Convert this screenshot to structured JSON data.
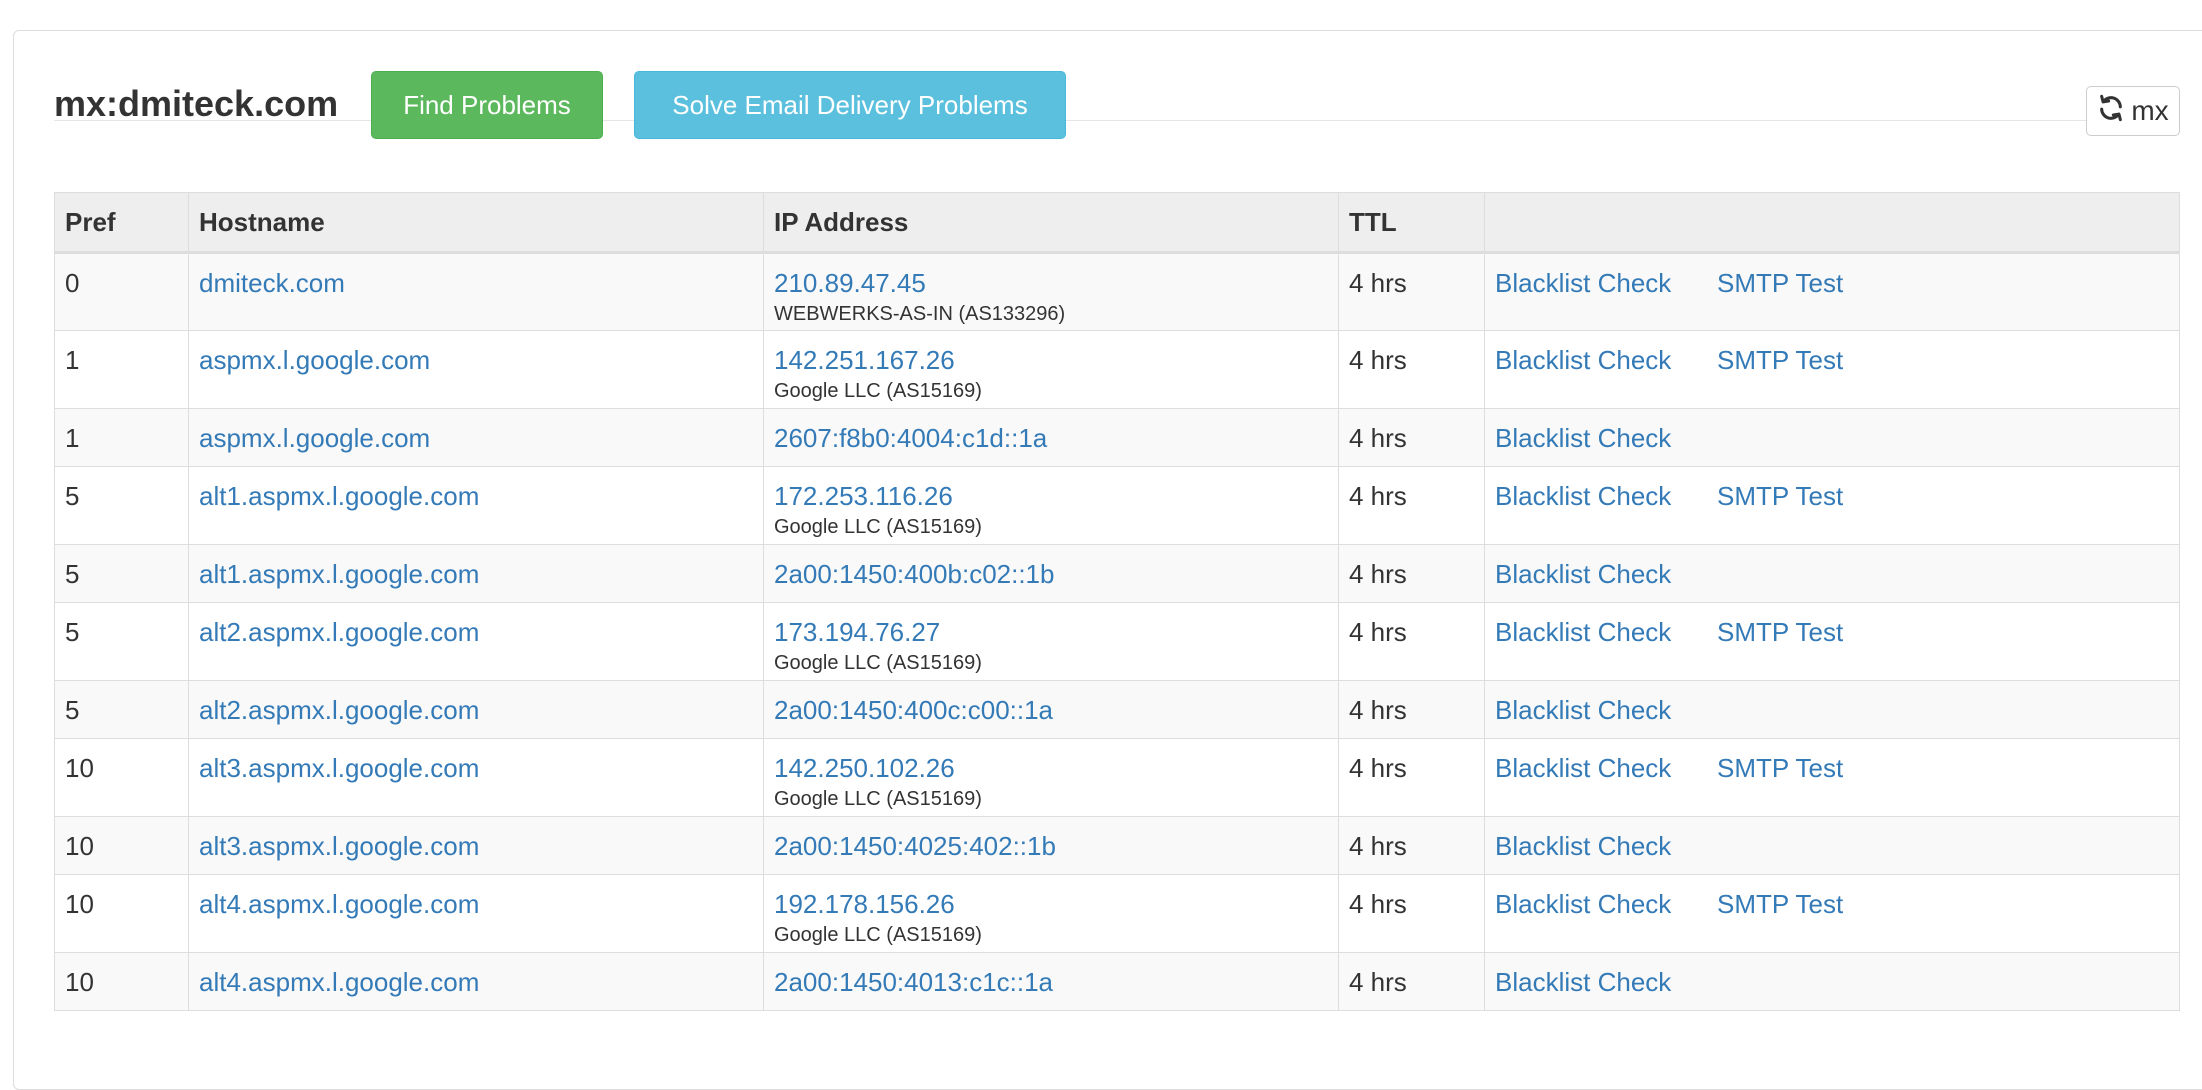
{
  "header": {
    "title": "mx:dmiteck.com",
    "find_problems_label": "Find Problems",
    "solve_label": "Solve Email Delivery Problems",
    "refresh_label": "mx"
  },
  "table": {
    "columns": [
      "Pref",
      "Hostname",
      "IP Address",
      "TTL",
      ""
    ],
    "rows": [
      {
        "pref": "0",
        "host": "dmiteck.com",
        "ip": "210.89.47.45",
        "asn": "WEBWERKS-AS-IN (AS133296)",
        "ttl": "4 hrs",
        "blacklist": "Blacklist Check",
        "smtp": "SMTP Test"
      },
      {
        "pref": "1",
        "host": "aspmx.l.google.com",
        "ip": "142.251.167.26",
        "asn": "Google LLC (AS15169)",
        "ttl": "4 hrs",
        "blacklist": "Blacklist Check",
        "smtp": "SMTP Test"
      },
      {
        "pref": "1",
        "host": "aspmx.l.google.com",
        "ip": "2607:f8b0:4004:c1d::1a",
        "asn": "",
        "ttl": "4 hrs",
        "blacklist": "Blacklist Check",
        "smtp": ""
      },
      {
        "pref": "5",
        "host": "alt1.aspmx.l.google.com",
        "ip": "172.253.116.26",
        "asn": "Google LLC (AS15169)",
        "ttl": "4 hrs",
        "blacklist": "Blacklist Check",
        "smtp": "SMTP Test"
      },
      {
        "pref": "5",
        "host": "alt1.aspmx.l.google.com",
        "ip": "2a00:1450:400b:c02::1b",
        "asn": "",
        "ttl": "4 hrs",
        "blacklist": "Blacklist Check",
        "smtp": ""
      },
      {
        "pref": "5",
        "host": "alt2.aspmx.l.google.com",
        "ip": "173.194.76.27",
        "asn": "Google LLC (AS15169)",
        "ttl": "4 hrs",
        "blacklist": "Blacklist Check",
        "smtp": "SMTP Test"
      },
      {
        "pref": "5",
        "host": "alt2.aspmx.l.google.com",
        "ip": "2a00:1450:400c:c00::1a",
        "asn": "",
        "ttl": "4 hrs",
        "blacklist": "Blacklist Check",
        "smtp": ""
      },
      {
        "pref": "10",
        "host": "alt3.aspmx.l.google.com",
        "ip": "142.250.102.26",
        "asn": "Google LLC (AS15169)",
        "ttl": "4 hrs",
        "blacklist": "Blacklist Check",
        "smtp": "SMTP Test"
      },
      {
        "pref": "10",
        "host": "alt3.aspmx.l.google.com",
        "ip": "2a00:1450:4025:402::1b",
        "asn": "",
        "ttl": "4 hrs",
        "blacklist": "Blacklist Check",
        "smtp": ""
      },
      {
        "pref": "10",
        "host": "alt4.aspmx.l.google.com",
        "ip": "192.178.156.26",
        "asn": "Google LLC (AS15169)",
        "ttl": "4 hrs",
        "blacklist": "Blacklist Check",
        "smtp": "SMTP Test"
      },
      {
        "pref": "10",
        "host": "alt4.aspmx.l.google.com",
        "ip": "2a00:1450:4013:c1c::1a",
        "asn": "",
        "ttl": "4 hrs",
        "blacklist": "Blacklist Check",
        "smtp": ""
      }
    ]
  },
  "colors": {
    "link": "#337ab7",
    "success": "#5cb85c",
    "info": "#5bc0de"
  },
  "icons": {
    "refresh": "refresh-icon"
  }
}
